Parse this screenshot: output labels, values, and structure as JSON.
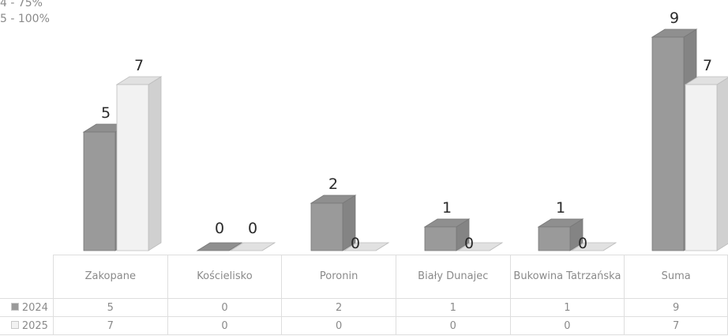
{
  "legend_notes": [
    "4 - 75%",
    "5 - 100%"
  ],
  "chart_data": {
    "type": "bar",
    "title": "",
    "xlabel": "",
    "ylabel": "",
    "ylim": [
      0,
      9.5
    ],
    "categories": [
      "Zakopane",
      "Kościelisko",
      "Poronin",
      "Biały Dunajec",
      "Bukowina Tatrzańska",
      "Suma"
    ],
    "series": [
      {
        "name": "2024",
        "values": [
          5,
          0,
          2,
          1,
          1,
          9
        ],
        "color": "#9a9a9a"
      },
      {
        "name": "2025",
        "values": [
          7,
          0,
          0,
          0,
          0,
          7
        ],
        "color": "#f2f2f2"
      }
    ],
    "grid": false,
    "legend": "table-bottom-left"
  }
}
